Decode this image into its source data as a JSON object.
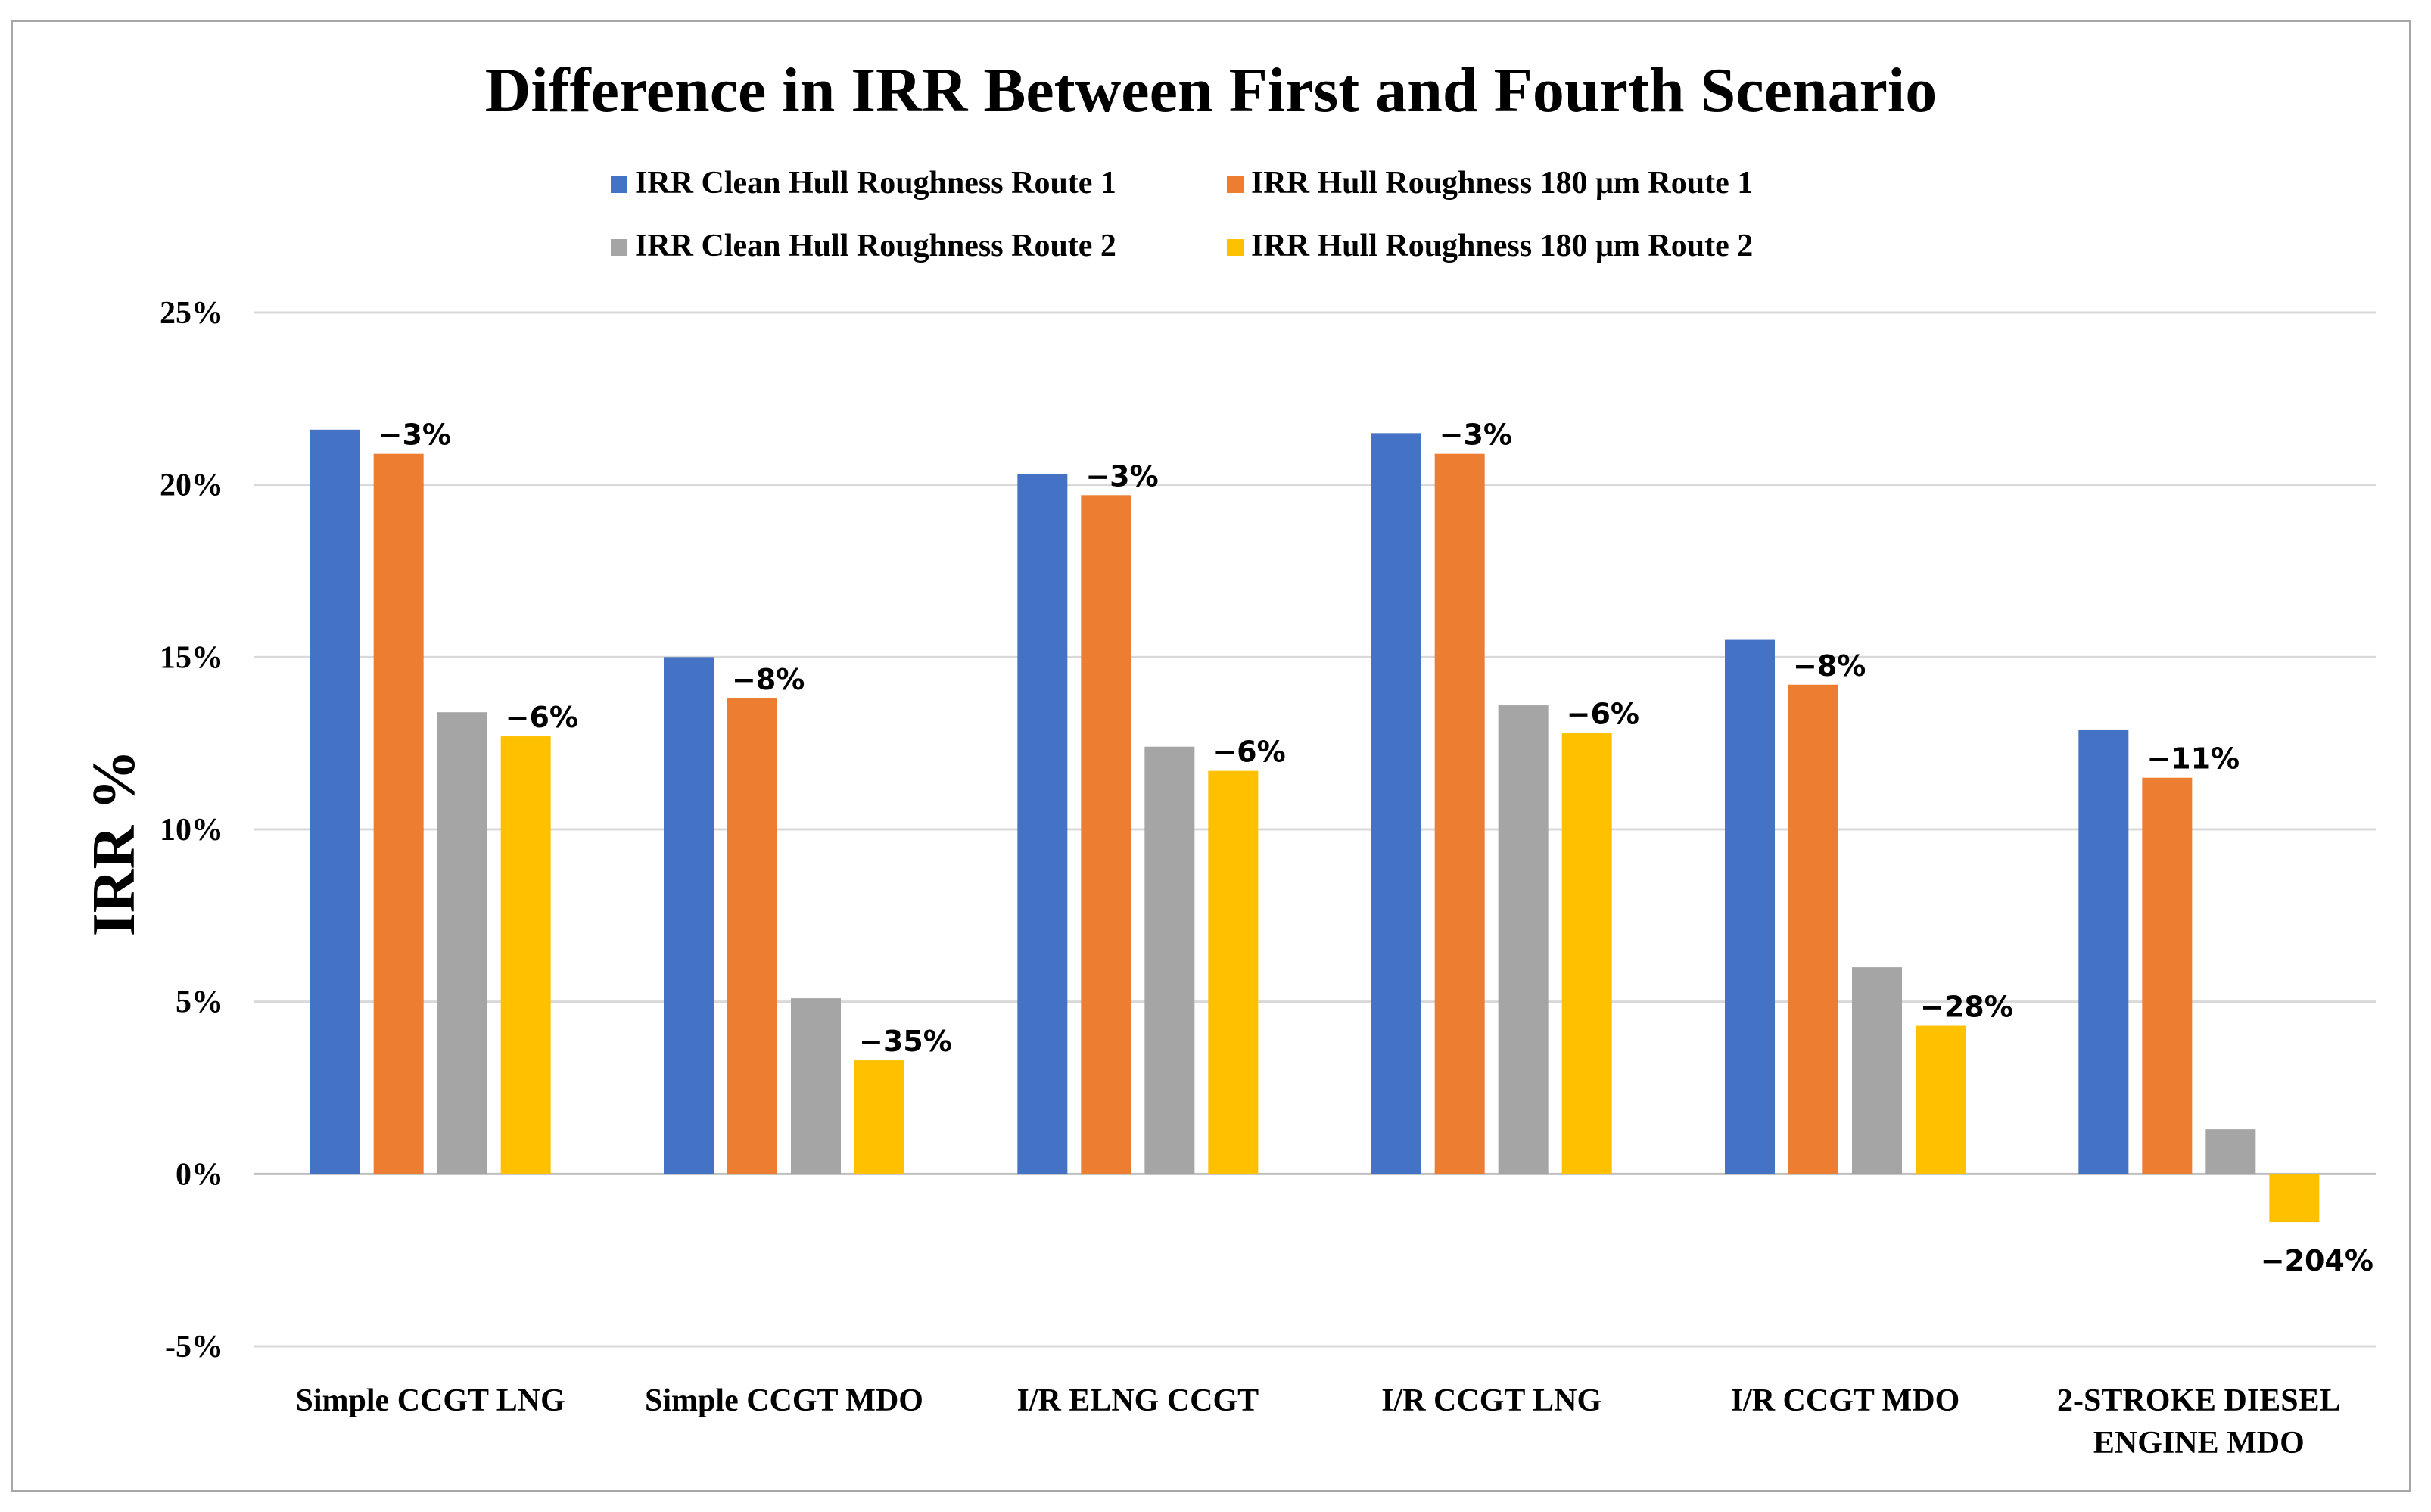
{
  "chart_data": {
    "type": "bar",
    "title": "Difference in IRR Between First and Fourth Scenario",
    "xlabel": "",
    "ylabel": "IRR %",
    "ylim": [
      -5,
      25
    ],
    "yticks": [
      25,
      20,
      15,
      10,
      5,
      0,
      -5
    ],
    "ytick_labels": [
      "25%",
      "20%",
      "15%",
      "10%",
      "5%",
      "0%",
      "-5%"
    ],
    "grid": true,
    "legend_position": "top",
    "categories": [
      [
        "Simple CCGT LNG"
      ],
      [
        "Simple CCGT MDO"
      ],
      [
        "I/R ELNG CCGT"
      ],
      [
        "I/R CCGT LNG"
      ],
      [
        "I/R CCGT MDO"
      ],
      [
        "2-STROKE DIESEL",
        "ENGINE MDO"
      ]
    ],
    "series": [
      {
        "name": "IRR Clean Hull Roughness Route 1",
        "color": "#4472c4",
        "values": [
          21.6,
          15.0,
          20.3,
          21.5,
          15.5,
          12.9
        ]
      },
      {
        "name": "IRR Hull Roughness 180 μm Route 1",
        "color": "#ed7d31",
        "values": [
          20.9,
          13.8,
          19.7,
          20.9,
          14.2,
          11.5
        ]
      },
      {
        "name": "IRR Clean Hull Roughness Route 2",
        "color": "#a5a5a5",
        "values": [
          13.4,
          5.1,
          12.4,
          13.6,
          6.0,
          1.3
        ]
      },
      {
        "name": "IRR Hull Roughness 180 μm Route 2",
        "color": "#ffc000",
        "values": [
          12.7,
          3.3,
          11.7,
          12.8,
          4.3,
          -1.4
        ]
      }
    ],
    "annotations": [
      {
        "series": 1,
        "category": 0,
        "text": "−3%"
      },
      {
        "series": 3,
        "category": 0,
        "text": "−6%"
      },
      {
        "series": 1,
        "category": 1,
        "text": "−8%"
      },
      {
        "series": 3,
        "category": 1,
        "text": "−35%"
      },
      {
        "series": 1,
        "category": 2,
        "text": "−3%"
      },
      {
        "series": 3,
        "category": 2,
        "text": "−6%"
      },
      {
        "series": 1,
        "category": 3,
        "text": "−3%"
      },
      {
        "series": 3,
        "category": 3,
        "text": "−6%"
      },
      {
        "series": 1,
        "category": 4,
        "text": "−8%"
      },
      {
        "series": 3,
        "category": 4,
        "text": "−28%"
      },
      {
        "series": 1,
        "category": 5,
        "text": "−11%"
      },
      {
        "series": 3,
        "category": 5,
        "text": "−204%"
      }
    ]
  }
}
